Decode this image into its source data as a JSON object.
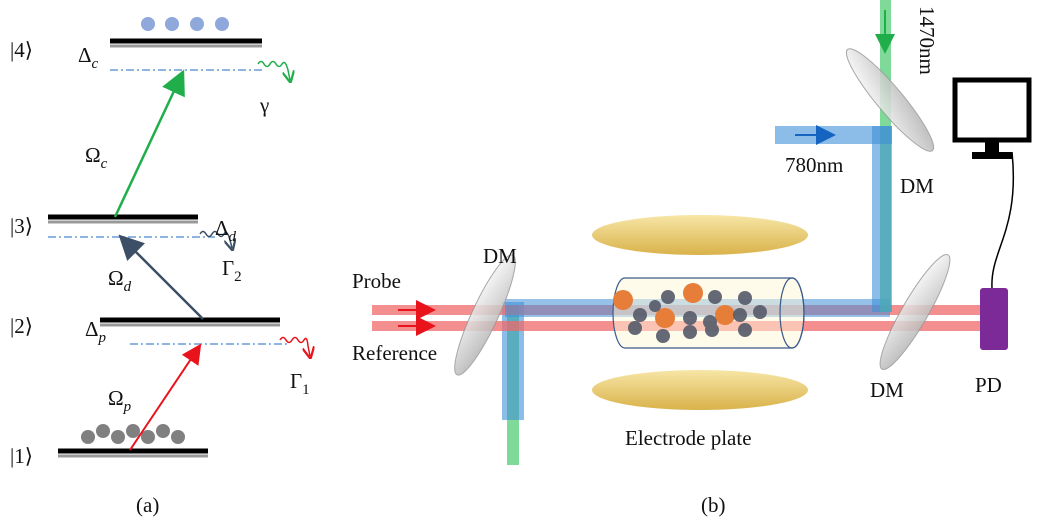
{
  "panel_a": {
    "levels": [
      "|4⟩",
      "|3⟩",
      "|2⟩",
      "|1⟩"
    ],
    "detunings": [
      {
        "symbol": "Δ",
        "sub": "c"
      },
      {
        "symbol": "Δ",
        "sub": "d"
      },
      {
        "symbol": "Δ",
        "sub": "p"
      }
    ],
    "couplings": [
      {
        "symbol": "Ω",
        "sub": "c"
      },
      {
        "symbol": "Ω",
        "sub": "d"
      },
      {
        "symbol": "Ω",
        "sub": "p"
      }
    ],
    "decays": [
      {
        "symbol": "γ",
        "sub": ""
      },
      {
        "symbol": "Γ",
        "sub": "2"
      },
      {
        "symbol": "Γ",
        "sub": "1"
      }
    ],
    "caption": "(a)"
  },
  "panel_b": {
    "wavelengths": [
      "1470nm",
      "780nm"
    ],
    "mirrors": [
      "DM",
      "DM",
      "DM"
    ],
    "beams": [
      "Probe",
      "Reference"
    ],
    "electrode": "Electrode plate",
    "detector": "PD",
    "caption": "(b)"
  }
}
